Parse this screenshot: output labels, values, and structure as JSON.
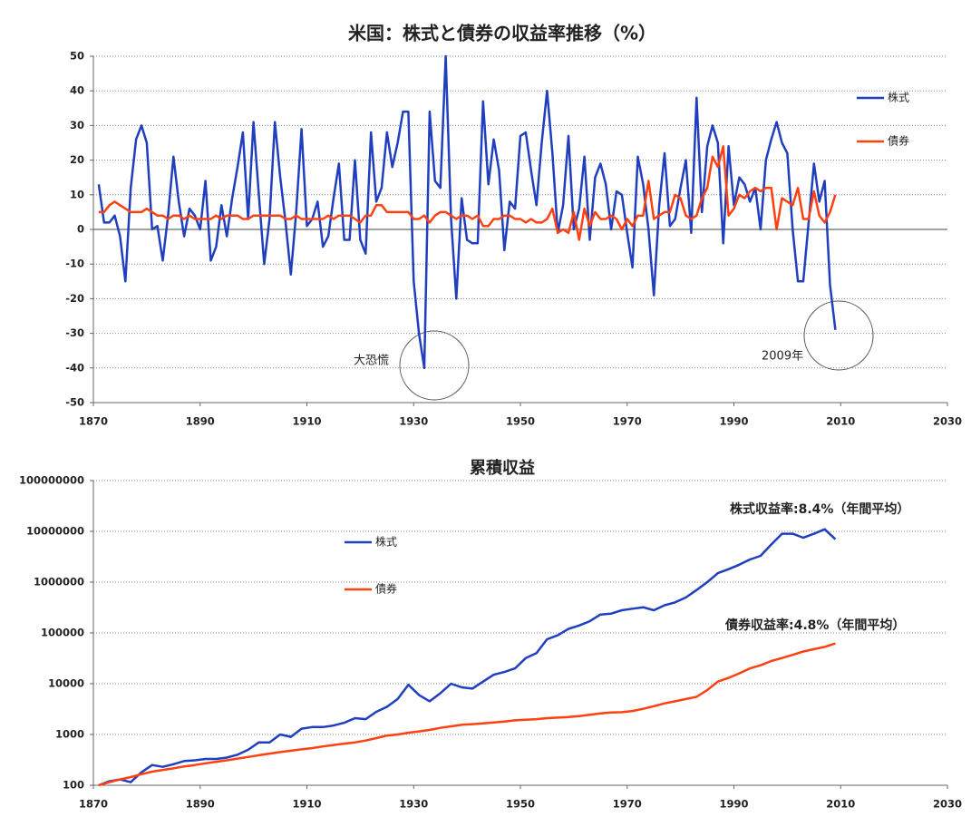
{
  "chart_data": [
    {
      "type": "line",
      "title": "米国：株式と債券の収益率推移（%）",
      "x": [
        1871,
        1872,
        1873,
        1874,
        1875,
        1876,
        1877,
        1878,
        1879,
        1880,
        1881,
        1882,
        1883,
        1884,
        1885,
        1886,
        1887,
        1888,
        1889,
        1890,
        1891,
        1892,
        1893,
        1894,
        1895,
        1896,
        1897,
        1898,
        1899,
        1900,
        1901,
        1902,
        1903,
        1904,
        1905,
        1906,
        1907,
        1908,
        1909,
        1910,
        1911,
        1912,
        1913,
        1914,
        1915,
        1916,
        1917,
        1918,
        1919,
        1920,
        1921,
        1922,
        1923,
        1924,
        1925,
        1926,
        1927,
        1928,
        1929,
        1930,
        1931,
        1932,
        1933,
        1934,
        1935,
        1936,
        1937,
        1938,
        1939,
        1940,
        1941,
        1942,
        1943,
        1944,
        1945,
        1946,
        1947,
        1948,
        1949,
        1950,
        1951,
        1952,
        1953,
        1954,
        1955,
        1956,
        1957,
        1958,
        1959,
        1960,
        1961,
        1962,
        1963,
        1964,
        1965,
        1966,
        1967,
        1968,
        1969,
        1970,
        1971,
        1972,
        1973,
        1974,
        1975,
        1976,
        1977,
        1978,
        1979,
        1980,
        1981,
        1982,
        1983,
        1984,
        1985,
        1986,
        1987,
        1988,
        1989,
        1990,
        1991,
        1992,
        1993,
        1994,
        1995,
        1996,
        1997,
        1998,
        1999,
        2000,
        2001,
        2002,
        2003,
        2004,
        2005,
        2006,
        2007,
        2008,
        2009
      ],
      "series": [
        {
          "name": "株式",
          "color": "#1f3fbf",
          "values": [
            13,
            2,
            2,
            4,
            -2,
            -15,
            12,
            26,
            30,
            25,
            0,
            1,
            -9,
            4,
            21,
            8,
            -2,
            6,
            4,
            0,
            14,
            -9,
            -5,
            7,
            -2,
            9,
            18,
            28,
            3,
            31,
            10,
            -10,
            3,
            31,
            15,
            2,
            -13,
            5,
            29,
            1,
            3,
            8,
            -5,
            -2,
            9,
            19,
            -3,
            -3,
            20,
            -3,
            -7,
            28,
            8,
            12,
            28,
            18,
            25,
            34,
            34,
            -15,
            -30,
            -40,
            34,
            14,
            12,
            50,
            3,
            -20,
            9,
            -3,
            -4,
            -4,
            37,
            13,
            26,
            17,
            -6,
            8,
            6,
            27,
            28,
            17,
            7,
            25,
            40,
            22,
            -1,
            7,
            27,
            0,
            6,
            21,
            -3,
            15,
            19,
            13,
            0,
            11,
            10,
            -1,
            -11,
            21,
            13,
            0,
            -19,
            7,
            22,
            1,
            3,
            12,
            20,
            -1,
            38,
            5,
            24,
            30,
            25,
            -4,
            24,
            7,
            15,
            13,
            8,
            12,
            0,
            20,
            26,
            31,
            25,
            22,
            0,
            -15,
            -15,
            2,
            19,
            8,
            14,
            -16,
            -29
          ]
        },
        {
          "name": "債券",
          "color": "#ff4010",
          "values": [
            5,
            5,
            7,
            8,
            7,
            6,
            5,
            5,
            5,
            6,
            5,
            4,
            4,
            3,
            4,
            4,
            3,
            4,
            3,
            3,
            3,
            3,
            4,
            3,
            4,
            4,
            4,
            3,
            3,
            4,
            4,
            4,
            4,
            4,
            4,
            3,
            3,
            4,
            3,
            3,
            3,
            3,
            3,
            4,
            3,
            4,
            4,
            4,
            3,
            2,
            4,
            4,
            7,
            7,
            5,
            5,
            5,
            5,
            5,
            3,
            3,
            4,
            2,
            4,
            5,
            5,
            4,
            3,
            4,
            4,
            3,
            4,
            1,
            1,
            3,
            3,
            4,
            4,
            3,
            3,
            2,
            3,
            2,
            2,
            3,
            6,
            -1,
            0,
            -1,
            5,
            -3,
            6,
            1,
            5,
            3,
            3,
            4,
            3,
            0,
            3,
            1,
            4,
            4,
            14,
            3,
            4,
            5,
            5,
            10,
            9,
            4,
            3,
            4,
            9,
            12,
            21,
            18,
            24,
            4,
            6,
            10,
            9,
            11,
            12,
            11,
            12,
            12,
            0,
            9,
            8,
            7,
            12,
            3,
            3,
            11,
            4,
            2,
            5,
            10
          ]
        }
      ],
      "xlim": [
        1870,
        2030
      ],
      "xticks": [
        1870,
        1890,
        1910,
        1930,
        1950,
        1970,
        1990,
        2010,
        2030
      ],
      "ylim": [
        -50,
        50
      ],
      "yticks": [
        -50,
        -40,
        -30,
        -20,
        -10,
        0,
        10,
        20,
        30,
        40,
        50
      ],
      "grid": true,
      "annotations": [
        "大恐慌",
        "2009年"
      ]
    },
    {
      "type": "line",
      "title": "累積収益",
      "x": [
        1871,
        1873,
        1875,
        1877,
        1879,
        1881,
        1883,
        1885,
        1887,
        1889,
        1891,
        1893,
        1895,
        1897,
        1899,
        1901,
        1903,
        1905,
        1907,
        1909,
        1911,
        1913,
        1915,
        1917,
        1919,
        1921,
        1923,
        1925,
        1927,
        1929,
        1931,
        1933,
        1935,
        1937,
        1939,
        1941,
        1943,
        1945,
        1947,
        1949,
        1951,
        1953,
        1955,
        1957,
        1959,
        1961,
        1963,
        1965,
        1967,
        1969,
        1971,
        1973,
        1975,
        1977,
        1979,
        1981,
        1983,
        1985,
        1987,
        1989,
        1991,
        1993,
        1995,
        1997,
        1999,
        2001,
        2003,
        2005,
        2007,
        2009
      ],
      "series": [
        {
          "name": "株式",
          "color": "#1f3fbf",
          "values": [
            100,
            120,
            130,
            115,
            180,
            250,
            230,
            260,
            300,
            310,
            330,
            330,
            350,
            400,
            500,
            700,
            700,
            1000,
            900,
            1300,
            1400,
            1400,
            1500,
            1700,
            2100,
            2000,
            2800,
            3500,
            5000,
            9500,
            6000,
            4500,
            6500,
            10000,
            8500,
            8000,
            11000,
            15000,
            17000,
            20000,
            32000,
            40000,
            75000,
            90000,
            120000,
            140000,
            170000,
            230000,
            240000,
            280000,
            300000,
            320000,
            280000,
            350000,
            400000,
            500000,
            700000,
            1000000,
            1500000,
            1800000,
            2200000,
            2800000,
            3300000,
            5500000,
            9000000,
            9000000,
            7500000,
            9000000,
            11000000,
            7000000
          ]
        },
        {
          "name": "債券",
          "color": "#ff4010",
          "values": [
            100,
            115,
            130,
            145,
            165,
            185,
            200,
            215,
            235,
            250,
            270,
            290,
            310,
            335,
            360,
            390,
            420,
            450,
            480,
            510,
            540,
            580,
            620,
            660,
            700,
            760,
            850,
            950,
            1000,
            1080,
            1150,
            1230,
            1350,
            1450,
            1550,
            1600,
            1650,
            1720,
            1800,
            1900,
            1950,
            2000,
            2100,
            2150,
            2200,
            2300,
            2450,
            2600,
            2700,
            2750,
            2900,
            3200,
            3600,
            4100,
            4500,
            5000,
            5500,
            7500,
            11000,
            13000,
            16000,
            20000,
            23000,
            28000,
            32000,
            37000,
            43000,
            48000,
            53000,
            62000
          ]
        }
      ],
      "xlim": [
        1870,
        2030
      ],
      "xticks": [
        1870,
        1890,
        1910,
        1930,
        1950,
        1970,
        1990,
        2010,
        2030
      ],
      "ylim": [
        100,
        100000000
      ],
      "yticks": [
        100,
        1000,
        10000,
        100000,
        1000000,
        10000000,
        100000000
      ],
      "log_y": true,
      "grid": true,
      "annotations": [
        "株式収益率:8.4%（年間平均）",
        "債券収益率:4.8%（年間平均）"
      ]
    }
  ]
}
